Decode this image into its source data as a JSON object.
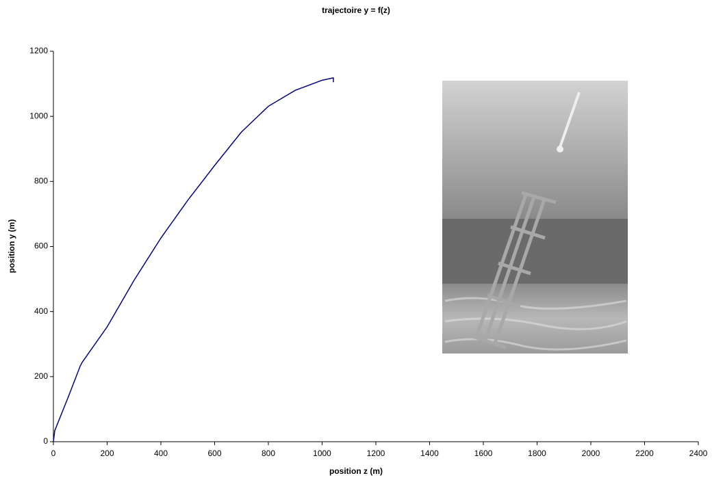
{
  "chart_data": {
    "type": "line",
    "title": "trajectoire y = f(z)",
    "x_label": "position z (m)",
    "y_label": "position y  (m)",
    "x": [
      0,
      5,
      56,
      100,
      107,
      200,
      300,
      400,
      500,
      600,
      700,
      800,
      900,
      1000,
      1040,
      1042,
      1042
    ],
    "values": [
      0,
      34,
      139,
      233,
      244,
      353,
      496,
      626,
      742,
      849,
      952,
      1031,
      1080,
      1111,
      1118,
      1118,
      1105
    ],
    "color": "#000080",
    "xlim": [
      0,
      2400
    ],
    "xticks": [
      0,
      200,
      400,
      600,
      800,
      1000,
      1200,
      1400,
      1600,
      1800,
      2000,
      2200,
      2400
    ],
    "ylim": [
      0,
      1200
    ],
    "yticks": [
      0,
      200,
      400,
      600,
      800,
      1000,
      1200
    ],
    "grid": false
  }
}
